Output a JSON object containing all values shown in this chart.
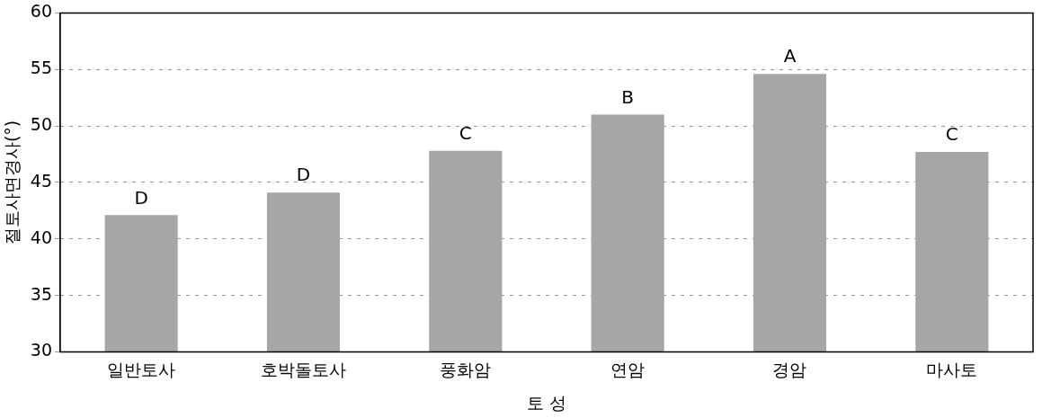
{
  "chart_data": {
    "type": "bar",
    "xlabel": "토 성",
    "ylabel": "절토사면경사(°)",
    "categories": [
      "일반토사",
      "호박돌토사",
      "풍화암",
      "연암",
      "경암",
      "마사토"
    ],
    "values": [
      42.1,
      44.1,
      47.8,
      51.0,
      54.6,
      47.7
    ],
    "color": "#a6a6a6",
    "ylim": [
      30,
      60
    ],
    "yticks": [
      30,
      35,
      40,
      45,
      50,
      55,
      60
    ],
    "grid": "y",
    "annotations": [
      {
        "text": "D",
        "x": "일반토사",
        "y": 42.1
      },
      {
        "text": "D",
        "x": "호박돌토사",
        "y": 44.1
      },
      {
        "text": "C",
        "x": "풍화암",
        "y": 47.8
      },
      {
        "text": "B",
        "x": "연암",
        "y": 51.0
      },
      {
        "text": "A",
        "x": "경암",
        "y": 54.6
      },
      {
        "text": "C",
        "x": "마사토",
        "y": 47.7
      }
    ]
  }
}
